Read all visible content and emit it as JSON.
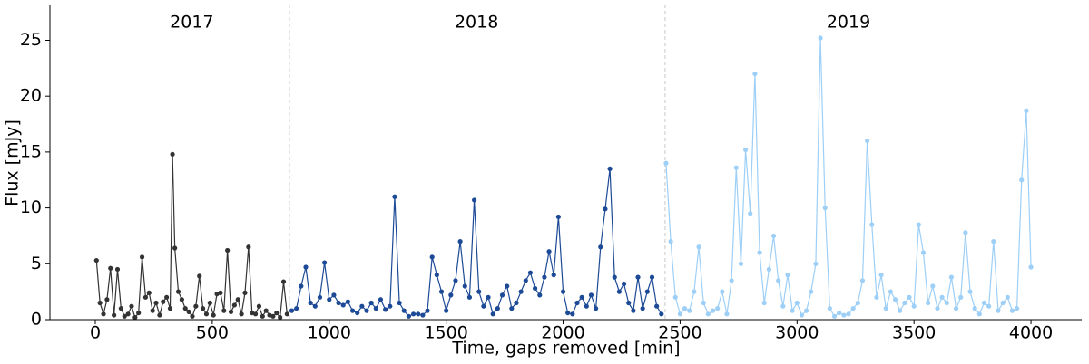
{
  "chart_data": {
    "type": "line",
    "xlabel": "Time, gaps removed [min]",
    "ylabel": "Flux [mJy]",
    "year_labels": [
      "2017",
      "2018",
      "2019"
    ],
    "vlines": [
      830,
      2436
    ],
    "xlim": [
      -194,
      4217
    ],
    "ylim": [
      0,
      28.2
    ],
    "xticks": [
      0,
      500,
      1000,
      1500,
      2000,
      2500,
      3000,
      3500,
      4000
    ],
    "yticks": [
      0,
      5,
      10,
      15,
      20,
      25
    ],
    "series": [
      {
        "name": "2017",
        "color": "#333333",
        "x": [
          5,
          20,
          35,
          50,
          65,
          80,
          95,
          110,
          125,
          140,
          155,
          170,
          185,
          200,
          215,
          230,
          245,
          260,
          275,
          290,
          305,
          320,
          330,
          340,
          355,
          370,
          385,
          400,
          415,
          430,
          445,
          460,
          475,
          490,
          505,
          520,
          535,
          550,
          565,
          580,
          595,
          610,
          625,
          640,
          655,
          670,
          685,
          700,
          715,
          730,
          745,
          760,
          775,
          790,
          805,
          820
        ],
        "values": [
          5.3,
          1.5,
          0.5,
          1.8,
          4.6,
          0.4,
          4.5,
          1.0,
          0.3,
          0.5,
          1.2,
          0.2,
          0.6,
          5.6,
          2.0,
          2.4,
          0.8,
          1.5,
          0.4,
          1.6,
          2.0,
          1.0,
          14.8,
          6.4,
          2.5,
          1.8,
          1.0,
          0.7,
          0.3,
          1.2,
          3.9,
          1.0,
          0.5,
          1.5,
          0.4,
          2.3,
          2.4,
          0.8,
          6.2,
          0.7,
          1.3,
          1.8,
          0.5,
          2.4,
          6.5,
          0.6,
          0.5,
          1.2,
          0.3,
          0.8,
          0.4,
          0.3,
          0.6,
          0.2,
          3.4,
          0.5
        ]
      },
      {
        "name": "2018",
        "color": "#1d4a96",
        "x": [
          840,
          860,
          880,
          900,
          920,
          940,
          960,
          980,
          1000,
          1020,
          1040,
          1060,
          1080,
          1100,
          1120,
          1140,
          1160,
          1180,
          1200,
          1220,
          1240,
          1260,
          1280,
          1300,
          1320,
          1340,
          1360,
          1380,
          1400,
          1420,
          1440,
          1460,
          1480,
          1500,
          1520,
          1540,
          1560,
          1580,
          1600,
          1620,
          1640,
          1660,
          1680,
          1700,
          1720,
          1740,
          1760,
          1780,
          1800,
          1820,
          1840,
          1860,
          1880,
          1900,
          1920,
          1940,
          1960,
          1980,
          2000,
          2020,
          2040,
          2060,
          2080,
          2100,
          2120,
          2140,
          2160,
          2180,
          2200,
          2220,
          2240,
          2260,
          2280,
          2300,
          2320,
          2340,
          2360,
          2380,
          2400,
          2420
        ],
        "values": [
          0.8,
          1.0,
          3.0,
          4.7,
          1.5,
          1.2,
          2.0,
          5.1,
          1.8,
          2.2,
          1.5,
          1.3,
          1.6,
          0.8,
          0.6,
          1.2,
          0.8,
          1.5,
          1.0,
          1.8,
          0.9,
          1.2,
          11.0,
          1.5,
          0.8,
          0.3,
          0.5,
          0.5,
          0.4,
          0.8,
          5.6,
          4.0,
          2.5,
          0.8,
          2.2,
          3.5,
          7.0,
          3.0,
          2.0,
          10.7,
          2.5,
          1.2,
          2.0,
          0.5,
          1.0,
          2.2,
          3.0,
          1.0,
          1.5,
          2.5,
          3.5,
          4.2,
          2.8,
          2.2,
          3.8,
          6.1,
          4.0,
          9.2,
          2.5,
          0.6,
          0.5,
          1.5,
          2.0,
          1.2,
          2.2,
          1.0,
          6.5,
          9.9,
          13.5,
          3.8,
          2.5,
          3.2,
          1.5,
          0.8,
          3.8,
          1.0,
          2.5,
          3.8,
          1.2,
          0.5
        ]
      },
      {
        "name": "2019",
        "color": "#9dcff7",
        "x": [
          2440,
          2460,
          2480,
          2500,
          2520,
          2540,
          2560,
          2580,
          2600,
          2620,
          2640,
          2660,
          2680,
          2700,
          2720,
          2740,
          2760,
          2780,
          2800,
          2820,
          2840,
          2860,
          2880,
          2900,
          2920,
          2940,
          2960,
          2980,
          3000,
          3020,
          3040,
          3060,
          3080,
          3100,
          3120,
          3140,
          3160,
          3180,
          3200,
          3220,
          3240,
          3260,
          3280,
          3300,
          3320,
          3340,
          3360,
          3380,
          3400,
          3420,
          3440,
          3460,
          3480,
          3500,
          3520,
          3540,
          3560,
          3580,
          3600,
          3620,
          3640,
          3660,
          3680,
          3700,
          3720,
          3740,
          3760,
          3780,
          3800,
          3820,
          3840,
          3860,
          3880,
          3900,
          3920,
          3940,
          3960,
          3980,
          4000
        ],
        "values": [
          14.0,
          7.0,
          2.0,
          0.5,
          1.0,
          0.8,
          2.5,
          6.5,
          1.5,
          0.5,
          0.8,
          1.0,
          2.5,
          0.5,
          3.5,
          13.6,
          5.0,
          15.2,
          9.5,
          22.0,
          6.0,
          1.5,
          4.5,
          7.5,
          3.5,
          1.2,
          4.0,
          0.8,
          1.5,
          0.4,
          0.8,
          2.5,
          5.0,
          25.2,
          10.0,
          1.0,
          0.3,
          0.6,
          0.4,
          0.5,
          1.0,
          1.5,
          3.5,
          16.0,
          8.5,
          2.0,
          4.0,
          1.0,
          2.5,
          1.8,
          0.8,
          1.5,
          2.0,
          1.2,
          8.5,
          6.0,
          1.5,
          3.0,
          1.0,
          2.0,
          1.5,
          3.8,
          1.0,
          2.0,
          7.8,
          2.5,
          1.0,
          0.5,
          1.5,
          1.2,
          7.0,
          0.8,
          1.5,
          2.0,
          0.8,
          1.0,
          12.5,
          18.7,
          4.7
        ]
      }
    ]
  }
}
